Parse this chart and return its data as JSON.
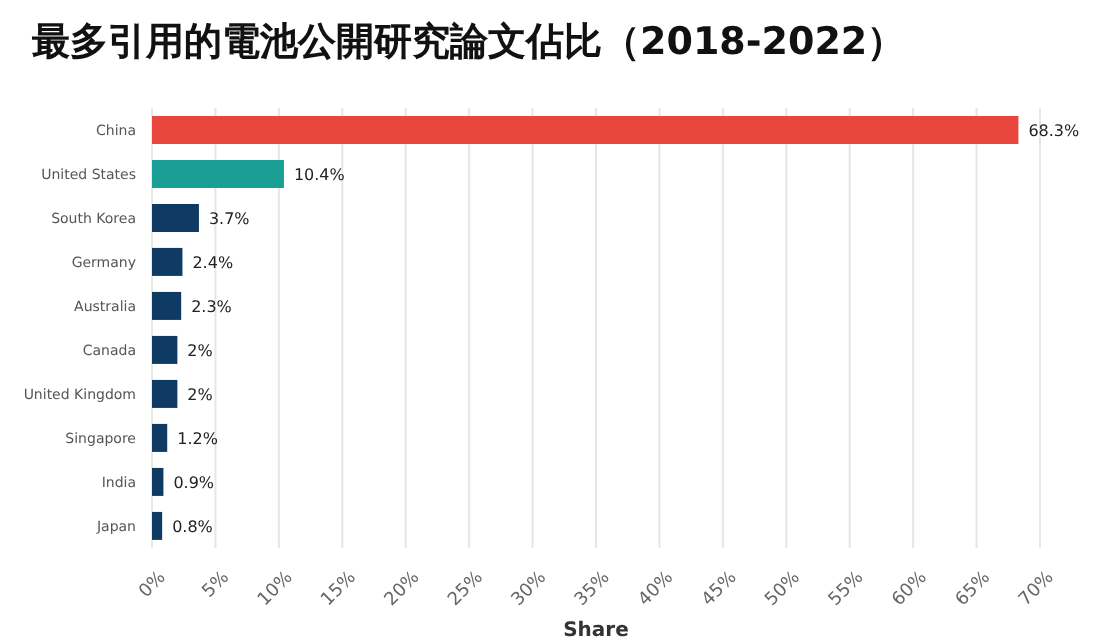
{
  "chart_data": {
    "type": "bar",
    "orientation": "horizontal",
    "title": "最多引用的電池公開研究論文佔比（2018-2022）",
    "xlabel": "Share",
    "categories": [
      "China",
      "United States",
      "South Korea",
      "Germany",
      "Australia",
      "Canada",
      "United Kingdom",
      "Singapore",
      "India",
      "Japan"
    ],
    "values": [
      68.3,
      10.4,
      3.7,
      2.4,
      2.3,
      2,
      2,
      1.2,
      0.9,
      0.8
    ],
    "colors": [
      "#e8453c",
      "#1a9e96",
      "#0f3a63",
      "#0f3a63",
      "#0f3a63",
      "#0f3a63",
      "#0f3a63",
      "#0f3a63",
      "#0f3a63",
      "#0f3a63"
    ],
    "value_labels": [
      "68.3%",
      "10.4%",
      "3.7%",
      "2.4%",
      "2.3%",
      "2%",
      "2%",
      "1.2%",
      "0.9%",
      "0.8%"
    ],
    "xlim": [
      0,
      70
    ],
    "xticks": [
      {
        "value": 0,
        "label": "0%"
      },
      {
        "value": 5,
        "label": "5%"
      },
      {
        "value": 10,
        "label": "10%"
      },
      {
        "value": 15,
        "label": "15%"
      },
      {
        "value": 20,
        "label": "20%"
      },
      {
        "value": 25,
        "label": "25%"
      },
      {
        "value": 30,
        "label": "30%"
      },
      {
        "value": 35,
        "label": "35%"
      },
      {
        "value": 40,
        "label": "40%"
      },
      {
        "value": 45,
        "label": "45%"
      },
      {
        "value": 50,
        "label": "50%"
      },
      {
        "value": 55,
        "label": "55%"
      },
      {
        "value": 60,
        "label": "60%"
      },
      {
        "value": 65,
        "label": "65%"
      },
      {
        "value": 70,
        "label": "70%"
      }
    ],
    "grid": "x",
    "legend": false
  }
}
